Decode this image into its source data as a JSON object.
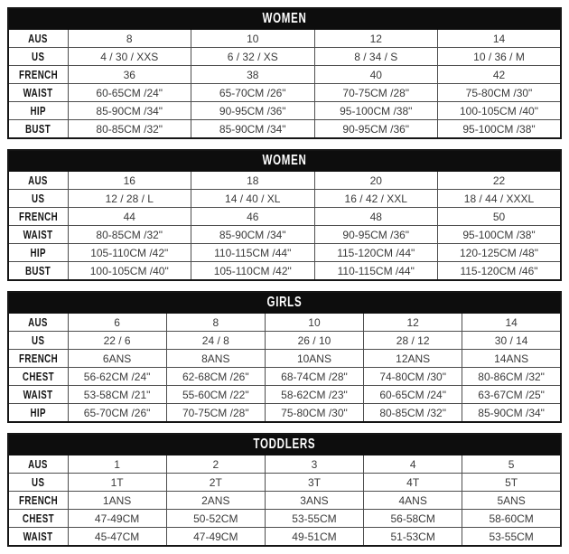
{
  "tables": [
    {
      "title": "WOMEN",
      "rows": [
        {
          "label": "AUS",
          "values": [
            "8",
            "10",
            "12",
            "14"
          ]
        },
        {
          "label": "US",
          "values": [
            "4 / 30 / XXS",
            "6 / 32 / XS",
            "8 / 34 / S",
            "10 / 36 / M"
          ]
        },
        {
          "label": "FRENCH",
          "values": [
            "36",
            "38",
            "40",
            "42"
          ]
        },
        {
          "label": "WAIST",
          "values": [
            "60-65CM /24\"",
            "65-70CM /26\"",
            "70-75CM /28\"",
            "75-80CM /30\""
          ]
        },
        {
          "label": "HIP",
          "values": [
            "85-90CM /34\"",
            "90-95CM /36\"",
            "95-100CM /38\"",
            "100-105CM /40\""
          ]
        },
        {
          "label": "BUST",
          "values": [
            "80-85CM /32\"",
            "85-90CM /34\"",
            "90-95CM /36\"",
            "95-100CM /38\""
          ]
        }
      ]
    },
    {
      "title": "WOMEN",
      "rows": [
        {
          "label": "AUS",
          "values": [
            "16",
            "18",
            "20",
            "22"
          ]
        },
        {
          "label": "US",
          "values": [
            "12 / 28 / L",
            "14 / 40 / XL",
            "16 / 42 / XXL",
            "18 / 44 / XXXL"
          ]
        },
        {
          "label": "FRENCH",
          "values": [
            "44",
            "46",
            "48",
            "50"
          ]
        },
        {
          "label": "WAIST",
          "values": [
            "80-85CM /32\"",
            "85-90CM /34\"",
            "90-95CM /36\"",
            "95-100CM /38\""
          ]
        },
        {
          "label": "HIP",
          "values": [
            "105-110CM /42\"",
            "110-115CM /44\"",
            "115-120CM /44\"",
            "120-125CM /48\""
          ]
        },
        {
          "label": "BUST",
          "values": [
            "100-105CM /40\"",
            "105-110CM /42\"",
            "110-115CM /44\"",
            "115-120CM /46\""
          ]
        }
      ]
    },
    {
      "title": "GIRLS",
      "rows": [
        {
          "label": "AUS",
          "values": [
            "6",
            "8",
            "10",
            "12",
            "14"
          ]
        },
        {
          "label": "US",
          "values": [
            "22 / 6",
            "24 / 8",
            "26 / 10",
            "28 / 12",
            "30 / 14"
          ]
        },
        {
          "label": "FRENCH",
          "values": [
            "6ANS",
            "8ANS",
            "10ANS",
            "12ANS",
            "14ANS"
          ]
        },
        {
          "label": "CHEST",
          "values": [
            "56-62CM /24\"",
            "62-68CM /26\"",
            "68-74CM /28\"",
            "74-80CM /30\"",
            "80-86CM /32\""
          ]
        },
        {
          "label": "WAIST",
          "values": [
            "53-58CM /21\"",
            "55-60CM /22\"",
            "58-62CM /23\"",
            "60-65CM /24\"",
            "63-67CM /25\""
          ]
        },
        {
          "label": "HIP",
          "values": [
            "65-70CM /26\"",
            "70-75CM /28\"",
            "75-80CM /30\"",
            "80-85CM /32\"",
            "85-90CM /34\""
          ]
        }
      ]
    },
    {
      "title": "TODDLERS",
      "rows": [
        {
          "label": "AUS",
          "values": [
            "1",
            "2",
            "3",
            "4",
            "5"
          ]
        },
        {
          "label": "US",
          "values": [
            "1T",
            "2T",
            "3T",
            "4T",
            "5T"
          ]
        },
        {
          "label": "FRENCH",
          "values": [
            "1ANS",
            "2ANS",
            "3ANS",
            "4ANS",
            "5ANS"
          ]
        },
        {
          "label": "CHEST",
          "values": [
            "47-49CM",
            "50-52CM",
            "53-55CM",
            "56-58CM",
            "58-60CM"
          ]
        },
        {
          "label": "WAIST",
          "values": [
            "45-47CM",
            "47-49CM",
            "49-51CM",
            "51-53CM",
            "53-55CM"
          ]
        }
      ]
    }
  ]
}
